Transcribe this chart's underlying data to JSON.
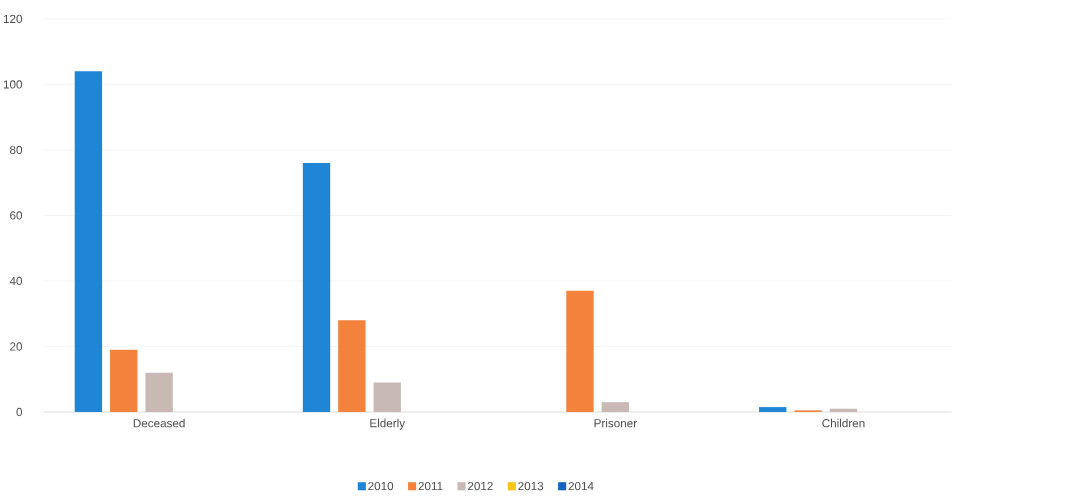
{
  "chart_data": {
    "type": "bar",
    "categories": [
      "Deceased",
      "Elderly",
      "Prisoner",
      "Children"
    ],
    "series": [
      {
        "name": "2010",
        "color": "#1f86d6",
        "values": [
          104,
          76,
          0,
          1.5
        ]
      },
      {
        "name": "2011",
        "color": "#f3823d",
        "values": [
          19,
          28,
          37,
          0.5
        ]
      },
      {
        "name": "2012",
        "color": "#c8b9b4",
        "values": [
          12,
          9,
          3,
          1
        ]
      },
      {
        "name": "2013",
        "color": "#f5c518",
        "values": [
          0,
          0,
          0,
          0
        ]
      },
      {
        "name": "2014",
        "color": "#1565c0",
        "values": [
          0,
          0,
          0,
          0
        ]
      }
    ],
    "ylim": [
      0,
      120
    ],
    "yticks": [
      0,
      20,
      40,
      60,
      80,
      100,
      120
    ],
    "grid": "y",
    "legend": "bottom"
  }
}
